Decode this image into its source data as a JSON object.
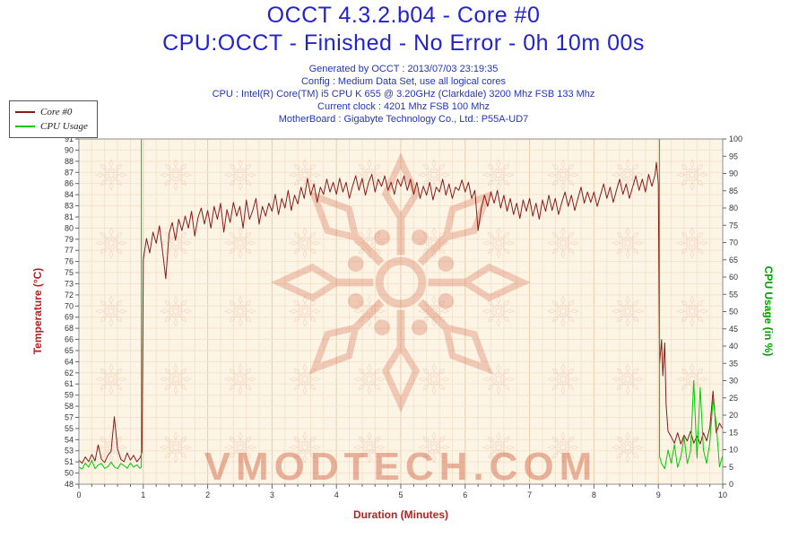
{
  "header": {
    "title": "OCCT 4.3.2.b04 - Core #0",
    "subtitle": "CPU:OCCT - Finished - No Error - 0h 10m 00s"
  },
  "meta": {
    "lines": [
      "Generated by OCCT : 2013/07/03 23:19:35",
      "Config : Medium Data Set, use all logical cores",
      "CPU : Intel(R) Core(TM) i5 CPU K 655 @ 3.20GHz (Clarkdale) 3200 Mhz FSB 133 Mhz",
      "Current clock : 4201 Mhz FSB 100 Mhz",
      "MotherBoard : Gigabyte Technology Co., Ltd.: P55A-UD7"
    ]
  },
  "colors": {
    "title_blue": "#2323cd",
    "meta_blue": "#2335bb",
    "plot_bg": "#fcf5e6",
    "grid_minor": "#f5e3cc",
    "grid_major": "#e9cda9",
    "plot_border": "#8f8f8f",
    "tick_text": "#333333",
    "tick_mark": "#666666",
    "watermark": "#cc4a26",
    "temp_line": "#8b1a1a",
    "usage_line": "#00cc00"
  },
  "chart_data": {
    "type": "line",
    "title": "OCCT 4.3.2.b04 - Core #0",
    "subtitle": "CPU:OCCT - Finished - No Error - 0h 10m 00s",
    "legend_position": "top-left",
    "grid": true,
    "watermark_text": "VMODTECH.COM",
    "x_axis": {
      "label": "Duration (Minutes)",
      "range": [
        0,
        10
      ],
      "ticks": [
        0,
        1,
        2,
        3,
        4,
        5,
        6,
        7,
        8,
        9,
        10
      ],
      "minor_step": 0.2,
      "color": "#b22222"
    },
    "y_left": {
      "label": "Temperature (°C)",
      "range": [
        48,
        91
      ],
      "ticks": [
        91,
        90,
        88,
        87,
        86,
        84,
        83,
        81,
        80,
        79,
        77,
        76,
        75,
        73,
        72,
        70,
        69,
        68,
        66,
        65,
        64,
        62,
        61,
        59,
        58,
        57,
        55,
        54,
        53,
        51,
        50,
        48
      ],
      "color": "#b22222"
    },
    "y_right": {
      "label": "CPU Usage (in %)",
      "range": [
        0,
        100
      ],
      "ticks": [
        100,
        95,
        90,
        85,
        80,
        75,
        70,
        65,
        60,
        55,
        50,
        45,
        40,
        35,
        30,
        25,
        20,
        15,
        10,
        5,
        0
      ],
      "color": "#00a000"
    },
    "series": [
      {
        "name": "Core #0",
        "axis": "left",
        "color": "#8b1a1a",
        "x": [
          0,
          0.05,
          0.1,
          0.15,
          0.2,
          0.25,
          0.3,
          0.35,
          0.4,
          0.45,
          0.5,
          0.55,
          0.6,
          0.65,
          0.7,
          0.75,
          0.8,
          0.85,
          0.9,
          0.95,
          0.98,
          1,
          1.05,
          1.1,
          1.15,
          1.2,
          1.25,
          1.3,
          1.35,
          1.4,
          1.45,
          1.5,
          1.55,
          1.6,
          1.65,
          1.7,
          1.75,
          1.8,
          1.85,
          1.9,
          1.95,
          2,
          2.05,
          2.1,
          2.15,
          2.2,
          2.25,
          2.3,
          2.35,
          2.4,
          2.45,
          2.5,
          2.55,
          2.6,
          2.65,
          2.7,
          2.75,
          2.8,
          2.85,
          2.9,
          2.95,
          3,
          3.05,
          3.1,
          3.15,
          3.2,
          3.25,
          3.3,
          3.35,
          3.4,
          3.45,
          3.5,
          3.55,
          3.6,
          3.65,
          3.7,
          3.75,
          3.8,
          3.85,
          3.9,
          3.95,
          4,
          4.05,
          4.1,
          4.15,
          4.2,
          4.25,
          4.3,
          4.35,
          4.4,
          4.45,
          4.5,
          4.55,
          4.6,
          4.65,
          4.7,
          4.75,
          4.8,
          4.85,
          4.9,
          4.95,
          5,
          5.05,
          5.1,
          5.15,
          5.2,
          5.25,
          5.3,
          5.35,
          5.4,
          5.45,
          5.5,
          5.55,
          5.6,
          5.65,
          5.7,
          5.75,
          5.8,
          5.85,
          5.9,
          5.95,
          6,
          6.05,
          6.1,
          6.15,
          6.2,
          6.25,
          6.3,
          6.35,
          6.4,
          6.45,
          6.5,
          6.55,
          6.6,
          6.65,
          6.7,
          6.75,
          6.8,
          6.85,
          6.9,
          6.95,
          7,
          7.05,
          7.1,
          7.15,
          7.2,
          7.25,
          7.3,
          7.35,
          7.4,
          7.45,
          7.5,
          7.55,
          7.6,
          7.65,
          7.7,
          7.75,
          7.8,
          7.85,
          7.9,
          7.95,
          8,
          8.05,
          8.1,
          8.15,
          8.2,
          8.25,
          8.3,
          8.35,
          8.4,
          8.45,
          8.5,
          8.55,
          8.6,
          8.65,
          8.7,
          8.75,
          8.8,
          8.85,
          8.9,
          8.95,
          8.97,
          9,
          9.02,
          9.05,
          9.07,
          9.1,
          9.12,
          9.15,
          9.2,
          9.25,
          9.3,
          9.35,
          9.4,
          9.45,
          9.5,
          9.55,
          9.6,
          9.65,
          9.7,
          9.75,
          9.8,
          9.85,
          9.9,
          9.95,
          10
        ],
        "y": [
          51,
          50.6,
          51.4,
          50.8,
          51.7,
          50.9,
          52.9,
          51.1,
          50.7,
          51.6,
          52.1,
          56.4,
          52.4,
          51.1,
          50.8,
          51.9,
          51,
          51.6,
          50.8,
          51.3,
          52,
          76,
          78.6,
          76.8,
          79.4,
          78,
          80.2,
          77,
          73.6,
          79.2,
          80.6,
          78.4,
          81,
          79.6,
          81.4,
          79.9,
          82,
          78.9,
          81.2,
          82.4,
          80.4,
          82.1,
          79.9,
          82.6,
          81,
          83,
          79.4,
          82.2,
          80.6,
          83.1,
          81.4,
          82.6,
          79.9,
          83.4,
          81,
          82.1,
          83.6,
          80.4,
          82.6,
          81.4,
          83,
          82,
          84.1,
          81.6,
          83.6,
          82.4,
          84.6,
          82.1,
          84,
          82.9,
          85,
          83.6,
          86.1,
          84,
          85.4,
          83.1,
          85,
          84.1,
          86,
          84.4,
          85.6,
          84.1,
          86.1,
          84.4,
          85.6,
          83.6,
          85.1,
          86.4,
          84.6,
          86.1,
          84,
          85.6,
          86.6,
          84.4,
          86,
          85.1,
          86.4,
          84.6,
          85.6,
          84.1,
          86,
          85.1,
          86.4,
          84.6,
          86,
          84.1,
          85.6,
          83.6,
          85.1,
          84,
          85.6,
          83.4,
          85,
          84.4,
          86,
          84,
          85.4,
          83.6,
          85,
          84.6,
          85.9,
          84.4,
          85.6,
          83.6,
          84.6,
          79.6,
          82.4,
          84,
          82.6,
          84.4,
          83,
          84.6,
          82.4,
          84,
          82,
          83.6,
          81.6,
          83,
          81.1,
          83.4,
          82,
          83.6,
          81.4,
          83,
          81,
          83.4,
          82,
          84,
          82.1,
          83.6,
          81.6,
          83.1,
          84.4,
          82.6,
          84,
          82.1,
          83.6,
          85,
          83,
          84.4,
          83.1,
          84.4,
          82.6,
          84,
          85.4,
          83.6,
          85,
          83.1,
          84.6,
          86,
          84.1,
          85.4,
          83.6,
          85,
          86.4,
          84.6,
          86,
          84.4,
          86.6,
          85.1,
          86.6,
          88.1,
          85.5,
          63,
          66,
          61.5,
          65.6,
          58,
          54.6,
          53.9,
          53.1,
          54.4,
          53,
          54.1,
          53.4,
          54.6,
          53.1,
          54,
          53,
          54.4,
          53.4,
          55,
          59.6,
          54.4,
          55.6,
          54.9
        ]
      },
      {
        "name": "CPU Usage",
        "axis": "right",
        "color": "#00cc00",
        "x": [
          0,
          0.05,
          0.1,
          0.15,
          0.2,
          0.25,
          0.3,
          0.35,
          0.4,
          0.45,
          0.5,
          0.55,
          0.6,
          0.65,
          0.7,
          0.75,
          0.8,
          0.85,
          0.9,
          0.95,
          0.97,
          0.97,
          9.02,
          9.02,
          9.05,
          9.1,
          9.15,
          9.2,
          9.25,
          9.3,
          9.35,
          9.4,
          9.45,
          9.5,
          9.55,
          9.6,
          9.65,
          9.7,
          9.75,
          9.8,
          9.85,
          9.9,
          9.95,
          10
        ],
        "y": [
          5,
          4.4,
          6.1,
          4.9,
          6.9,
          4.5,
          5.6,
          6,
          4.6,
          5.1,
          6.4,
          5,
          4.5,
          6,
          5.4,
          4.6,
          6.1,
          5,
          5.6,
          4.6,
          5,
          100,
          100,
          8,
          6,
          4.5,
          9.9,
          6.1,
          11.5,
          4.9,
          8,
          13.6,
          6,
          9.5,
          30,
          7.5,
          28,
          9.9,
          6,
          12,
          24.5,
          17.5,
          5,
          8.4
        ]
      }
    ]
  }
}
